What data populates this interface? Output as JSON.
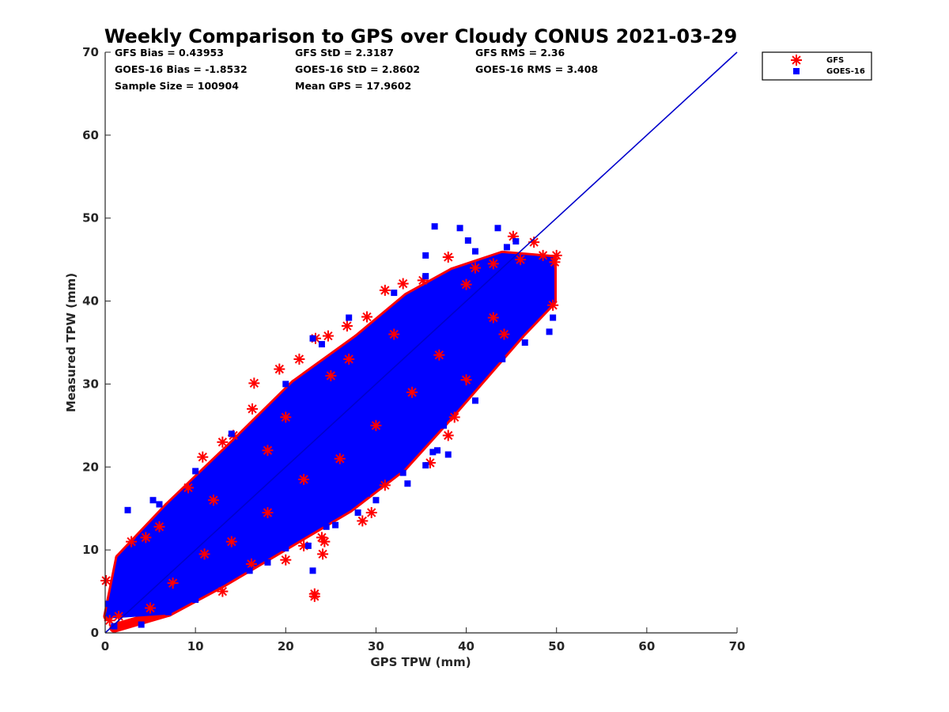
{
  "chart_data": {
    "type": "scatter",
    "title": "Weekly Comparison to GPS over Cloudy CONUS 2021-03-29",
    "xlabel": "GPS TPW (mm)",
    "ylabel": "Measured TPW (mm)",
    "xlim": [
      0,
      70
    ],
    "ylim": [
      0,
      70
    ],
    "xticks": [
      "0",
      "10",
      "20",
      "30",
      "40",
      "50",
      "60",
      "70"
    ],
    "yticks": [
      "0",
      "10",
      "20",
      "30",
      "40",
      "50",
      "60",
      "70"
    ],
    "grid": false,
    "legend_position": "outside-top-right",
    "stats": [
      [
        "GFS Bias = 0.43953",
        "GFS StD = 2.3187",
        "GFS RMS = 2.36"
      ],
      [
        "GOES-16 Bias = -1.8532",
        "GOES-16 StD = 2.8602",
        "GOES-16 RMS = 3.408"
      ],
      [
        "Sample Size = 100904",
        "Mean GPS = 17.9602"
      ]
    ],
    "reference_line": {
      "x": [
        0,
        70
      ],
      "y": [
        0,
        70
      ],
      "color": "#0000cc"
    },
    "series": [
      {
        "name": "GFS",
        "marker": "asterisk",
        "color": "#ff0000",
        "points": [
          [
            0.1,
            6.3
          ],
          [
            2.9,
            11.0
          ],
          [
            4.5,
            11.5
          ],
          [
            6.0,
            12.8
          ],
          [
            9.2,
            17.5
          ],
          [
            10.8,
            21.2
          ],
          [
            13.0,
            23.0
          ],
          [
            14.2,
            23.8
          ],
          [
            16.3,
            27.0
          ],
          [
            16.5,
            30.1
          ],
          [
            19.3,
            31.8
          ],
          [
            21.5,
            33.0
          ],
          [
            23.3,
            35.5
          ],
          [
            24.7,
            35.8
          ],
          [
            26.8,
            37.0
          ],
          [
            29.0,
            38.1
          ],
          [
            31.0,
            41.3
          ],
          [
            33.0,
            42.1
          ],
          [
            35.2,
            42.5
          ],
          [
            38.0,
            45.3
          ],
          [
            41.0,
            44.0
          ],
          [
            43.0,
            44.5
          ],
          [
            45.2,
            47.8
          ],
          [
            47.5,
            47.1
          ],
          [
            48.5,
            45.5
          ],
          [
            50.0,
            45.5
          ],
          [
            49.8,
            44.7
          ],
          [
            49.6,
            39.5
          ],
          [
            13.0,
            5.0
          ],
          [
            23.2,
            4.7
          ],
          [
            23.2,
            4.4
          ],
          [
            24.0,
            11.5
          ],
          [
            24.3,
            11.0
          ],
          [
            24.1,
            9.5
          ],
          [
            22.0,
            10.5
          ],
          [
            20.0,
            8.8
          ],
          [
            16.2,
            8.3
          ],
          [
            28.5,
            13.5
          ],
          [
            29.5,
            14.5
          ],
          [
            31.0,
            17.8
          ],
          [
            38.0,
            23.8
          ],
          [
            38.7,
            26.0
          ],
          [
            36.0,
            20.5
          ],
          [
            40.0,
            30.5
          ],
          [
            43.0,
            38.0
          ],
          [
            44.2,
            36.0
          ],
          [
            1.5,
            2.0
          ],
          [
            0.5,
            1.5
          ],
          [
            5.0,
            3.0
          ],
          [
            7.5,
            6.0
          ],
          [
            11.0,
            9.5
          ],
          [
            14.0,
            11.0
          ],
          [
            18.0,
            14.5
          ],
          [
            22.0,
            18.5
          ],
          [
            26.0,
            21.0
          ],
          [
            30.0,
            25.0
          ],
          [
            34.0,
            29.0
          ],
          [
            37.0,
            33.5
          ],
          [
            12.0,
            16.0
          ],
          [
            18.0,
            22.0
          ],
          [
            25.0,
            31.0
          ],
          [
            32.0,
            36.0
          ],
          [
            40.0,
            42.0
          ],
          [
            46.0,
            45.0
          ],
          [
            20.0,
            26.0
          ],
          [
            27.0,
            33.0
          ]
        ]
      },
      {
        "name": "GOES-16",
        "marker": "square",
        "color": "#0000ff",
        "points": [
          [
            36.5,
            49.0
          ],
          [
            39.3,
            48.8
          ],
          [
            40.2,
            47.3
          ],
          [
            43.5,
            48.8
          ],
          [
            41.0,
            46.0
          ],
          [
            35.5,
            45.5
          ],
          [
            44.5,
            46.5
          ],
          [
            45.5,
            47.2
          ],
          [
            5.3,
            16.0
          ],
          [
            2.5,
            14.8
          ],
          [
            6.0,
            15.5
          ],
          [
            10.0,
            19.5
          ],
          [
            14.0,
            24.0
          ],
          [
            20.0,
            30.0
          ],
          [
            23.0,
            35.5
          ],
          [
            24.0,
            34.8
          ],
          [
            27.0,
            38.0
          ],
          [
            32.0,
            41.0
          ],
          [
            35.5,
            43.0
          ],
          [
            38.0,
            40.0
          ],
          [
            41.5,
            43.0
          ],
          [
            44.0,
            40.0
          ],
          [
            47.0,
            41.5
          ],
          [
            49.6,
            38.0
          ],
          [
            49.2,
            36.3
          ],
          [
            47.0,
            37.5
          ],
          [
            45.0,
            36.5
          ],
          [
            43.5,
            35.0
          ],
          [
            42.5,
            33.5
          ],
          [
            41.0,
            32.0
          ],
          [
            39.5,
            30.0
          ],
          [
            38.2,
            28.5
          ],
          [
            37.5,
            25.0
          ],
          [
            36.8,
            22.0
          ],
          [
            36.3,
            21.8
          ],
          [
            35.5,
            20.2
          ],
          [
            33.5,
            18.0
          ],
          [
            33.0,
            19.3
          ],
          [
            30.0,
            16.0
          ],
          [
            29.0,
            16.8
          ],
          [
            27.0,
            15.5
          ],
          [
            28.0,
            14.5
          ],
          [
            25.5,
            13.0
          ],
          [
            24.5,
            12.8
          ],
          [
            23.0,
            7.5
          ],
          [
            22.5,
            10.5
          ],
          [
            20.0,
            10.2
          ],
          [
            18.0,
            8.5
          ],
          [
            16.0,
            7.5
          ],
          [
            13.0,
            6.5
          ],
          [
            10.0,
            4.0
          ],
          [
            7.0,
            2.5
          ],
          [
            4.0,
            1.0
          ],
          [
            1.0,
            0.8
          ],
          [
            0.3,
            3.5
          ],
          [
            2.0,
            6.5
          ],
          [
            6.0,
            8.0
          ],
          [
            9.0,
            9.5
          ],
          [
            12.0,
            13.0
          ],
          [
            15.0,
            15.5
          ],
          [
            18.0,
            18.5
          ],
          [
            21.0,
            22.0
          ],
          [
            24.0,
            24.5
          ],
          [
            27.0,
            27.5
          ],
          [
            30.0,
            30.0
          ],
          [
            33.0,
            33.0
          ],
          [
            36.0,
            35.5
          ],
          [
            39.0,
            37.5
          ],
          [
            42.0,
            39.5
          ],
          [
            45.0,
            41.5
          ],
          [
            48.0,
            43.0
          ],
          [
            31.0,
            21.5
          ],
          [
            34.0,
            25.0
          ],
          [
            26.0,
            18.0
          ],
          [
            22.0,
            15.5
          ],
          [
            19.0,
            13.0
          ],
          [
            16.0,
            11.0
          ],
          [
            8.0,
            5.5
          ],
          [
            38.0,
            21.5
          ],
          [
            41.0,
            28.0
          ],
          [
            44.0,
            33.0
          ],
          [
            46.5,
            35.0
          ],
          [
            48.5,
            42.5
          ],
          [
            3.5,
            4.0
          ]
        ]
      }
    ],
    "cloud": [
      [
        0.3,
        2.0,
        1.6,
        9.0
      ],
      [
        1.6,
        9.0,
        7.0,
        15.2
      ],
      [
        7.0,
        15.2,
        14.0,
        22.5
      ],
      [
        14.0,
        22.5,
        21.0,
        30.0
      ],
      [
        21.0,
        30.0,
        28.0,
        35.5
      ],
      [
        28.0,
        35.5,
        33.5,
        40.5
      ],
      [
        33.5,
        40.5,
        38.5,
        43.5
      ],
      [
        38.5,
        43.5,
        44.0,
        45.5
      ],
      [
        44.0,
        45.5,
        49.5,
        45.0
      ],
      [
        49.5,
        45.0,
        49.5,
        40.0
      ],
      [
        49.5,
        40.0,
        46.0,
        36.0
      ],
      [
        46.0,
        36.0,
        42.0,
        31.0
      ],
      [
        42.0,
        31.0,
        38.0,
        26.0
      ],
      [
        38.0,
        26.0,
        33.0,
        20.0
      ],
      [
        33.0,
        20.0,
        27.0,
        15.0
      ],
      [
        27.0,
        15.0,
        20.0,
        10.5
      ],
      [
        20.0,
        10.5,
        13.0,
        6.0
      ],
      [
        13.0,
        6.0,
        7.0,
        2.5
      ],
      [
        7.0,
        2.5,
        1.0,
        0.6
      ]
    ]
  },
  "legend": {
    "items": [
      {
        "label": "GFS",
        "marker": "asterisk",
        "color": "#ff0000"
      },
      {
        "label": "GOES-16",
        "marker": "square",
        "color": "#0000ff"
      }
    ]
  }
}
